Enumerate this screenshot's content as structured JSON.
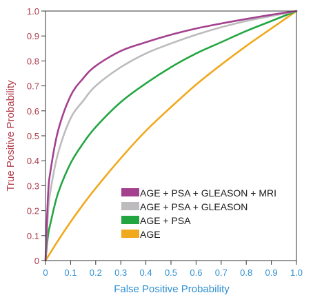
{
  "colors": {
    "axis": "#333333",
    "y_text": "#b03a4a",
    "x_text": "#2e8fd1"
  },
  "chart_data": {
    "type": "line",
    "xlabel": "False Positive Probability",
    "ylabel": "True Positive Probability",
    "xlim": [
      0,
      1
    ],
    "ylim": [
      0,
      1
    ],
    "grid": false,
    "legend_position": "bottom-right",
    "x_ticks": [
      "0",
      "0.1",
      "0.2",
      "0.3",
      "0.4",
      "0.5",
      "0.6",
      "0.7",
      "0.8",
      "0.9",
      "1.0"
    ],
    "y_ticks": [
      "0",
      "0.1",
      "0.2",
      "0.3",
      "0.4",
      "0.5",
      "0.6",
      "0.7",
      "0.8",
      "0.9",
      "1.0"
    ],
    "series": [
      {
        "name": "AGE + PSA + GLEASON + MRI",
        "color": "#a3418f",
        "points": [
          [
            0,
            0
          ],
          [
            0.01,
            0.26
          ],
          [
            0.02,
            0.36
          ],
          [
            0.05,
            0.52
          ],
          [
            0.1,
            0.66
          ],
          [
            0.15,
            0.73
          ],
          [
            0.2,
            0.78
          ],
          [
            0.3,
            0.84
          ],
          [
            0.4,
            0.875
          ],
          [
            0.5,
            0.905
          ],
          [
            0.6,
            0.93
          ],
          [
            0.7,
            0.95
          ],
          [
            0.8,
            0.968
          ],
          [
            0.9,
            0.985
          ],
          [
            1.0,
            1.0
          ]
        ]
      },
      {
        "name": "AGE + PSA + GLEASON",
        "color": "#bdbbbd",
        "points": [
          [
            0,
            0
          ],
          [
            0.01,
            0.19
          ],
          [
            0.02,
            0.28
          ],
          [
            0.05,
            0.43
          ],
          [
            0.1,
            0.57
          ],
          [
            0.15,
            0.64
          ],
          [
            0.2,
            0.7
          ],
          [
            0.3,
            0.775
          ],
          [
            0.4,
            0.83
          ],
          [
            0.5,
            0.87
          ],
          [
            0.6,
            0.905
          ],
          [
            0.7,
            0.935
          ],
          [
            0.8,
            0.96
          ],
          [
            0.9,
            0.98
          ],
          [
            1.0,
            1.0
          ]
        ]
      },
      {
        "name": "AGE + PSA",
        "color": "#23a642",
        "points": [
          [
            0,
            0
          ],
          [
            0.01,
            0.1
          ],
          [
            0.02,
            0.15
          ],
          [
            0.05,
            0.27
          ],
          [
            0.1,
            0.39
          ],
          [
            0.15,
            0.47
          ],
          [
            0.2,
            0.535
          ],
          [
            0.3,
            0.635
          ],
          [
            0.4,
            0.71
          ],
          [
            0.5,
            0.775
          ],
          [
            0.6,
            0.83
          ],
          [
            0.7,
            0.875
          ],
          [
            0.8,
            0.92
          ],
          [
            0.9,
            0.96
          ],
          [
            1.0,
            1.0
          ]
        ]
      },
      {
        "name": "AGE",
        "color": "#f0a81c",
        "points": [
          [
            0,
            0
          ],
          [
            0.05,
            0.08
          ],
          [
            0.1,
            0.155
          ],
          [
            0.15,
            0.225
          ],
          [
            0.2,
            0.29
          ],
          [
            0.3,
            0.41
          ],
          [
            0.4,
            0.52
          ],
          [
            0.5,
            0.615
          ],
          [
            0.6,
            0.705
          ],
          [
            0.7,
            0.785
          ],
          [
            0.8,
            0.86
          ],
          [
            0.9,
            0.93
          ],
          [
            1.0,
            1.0
          ]
        ]
      }
    ]
  }
}
